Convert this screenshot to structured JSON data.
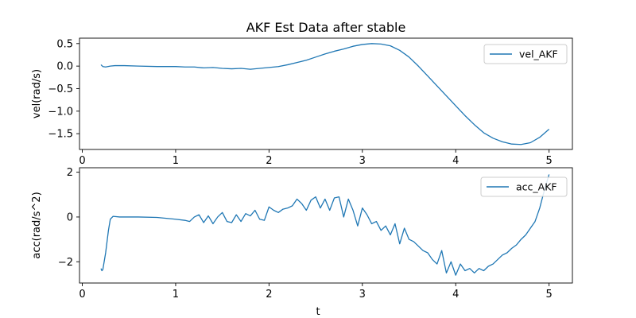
{
  "figure": {
    "title": "AKF Est Data after stable"
  },
  "chart_data": [
    {
      "type": "line",
      "title": "AKF Est Data after stable",
      "xlabel": "",
      "ylabel": "vel(rad/s)",
      "xlim": [
        -0.03,
        5.25
      ],
      "ylim": [
        -1.85,
        0.62
      ],
      "xticks": [
        0,
        1,
        2,
        3,
        4,
        5
      ],
      "xtick_labels": [
        "0",
        "1",
        "2",
        "3",
        "4",
        "5"
      ],
      "yticks": [
        0.5,
        0.0,
        -0.5,
        -1.0,
        -1.5
      ],
      "ytick_labels": [
        "0.5",
        "0.0",
        "−0.5",
        "−1.0",
        "−1.5"
      ],
      "grid": false,
      "legend": "top-right",
      "series": [
        {
          "name": "vel_AKF",
          "color": "#1f77b4",
          "points": [
            [
              0.2,
              0.03
            ],
            [
              0.22,
              -0.01
            ],
            [
              0.25,
              -0.02
            ],
            [
              0.3,
              0.0
            ],
            [
              0.35,
              0.01
            ],
            [
              0.45,
              0.01
            ],
            [
              0.6,
              0.0
            ],
            [
              0.8,
              -0.01
            ],
            [
              1.0,
              -0.01
            ],
            [
              1.1,
              -0.02
            ],
            [
              1.2,
              -0.02
            ],
            [
              1.3,
              -0.04
            ],
            [
              1.4,
              -0.03
            ],
            [
              1.5,
              -0.05
            ],
            [
              1.6,
              -0.06
            ],
            [
              1.7,
              -0.05
            ],
            [
              1.8,
              -0.07
            ],
            [
              1.9,
              -0.05
            ],
            [
              2.0,
              -0.03
            ],
            [
              2.1,
              -0.01
            ],
            [
              2.2,
              0.03
            ],
            [
              2.3,
              0.08
            ],
            [
              2.4,
              0.13
            ],
            [
              2.5,
              0.2
            ],
            [
              2.6,
              0.27
            ],
            [
              2.7,
              0.33
            ],
            [
              2.8,
              0.38
            ],
            [
              2.9,
              0.44
            ],
            [
              3.0,
              0.48
            ],
            [
              3.1,
              0.5
            ],
            [
              3.2,
              0.49
            ],
            [
              3.3,
              0.45
            ],
            [
              3.4,
              0.35
            ],
            [
              3.5,
              0.2
            ],
            [
              3.6,
              0.0
            ],
            [
              3.7,
              -0.22
            ],
            [
              3.8,
              -0.44
            ],
            [
              3.9,
              -0.66
            ],
            [
              4.0,
              -0.88
            ],
            [
              4.1,
              -1.1
            ],
            [
              4.2,
              -1.3
            ],
            [
              4.3,
              -1.48
            ],
            [
              4.4,
              -1.6
            ],
            [
              4.5,
              -1.68
            ],
            [
              4.6,
              -1.73
            ],
            [
              4.7,
              -1.74
            ],
            [
              4.8,
              -1.7
            ],
            [
              4.9,
              -1.58
            ],
            [
              5.0,
              -1.4
            ]
          ]
        }
      ]
    },
    {
      "type": "line",
      "title": "",
      "xlabel": "t",
      "ylabel": "acc(rad/s^2)",
      "xlim": [
        -0.03,
        5.25
      ],
      "ylim": [
        -2.95,
        2.2
      ],
      "xticks": [
        0,
        1,
        2,
        3,
        4,
        5
      ],
      "xtick_labels": [
        "0",
        "1",
        "2",
        "3",
        "4",
        "5"
      ],
      "yticks": [
        2,
        0,
        -2
      ],
      "ytick_labels": [
        "2",
        "0",
        "−2"
      ],
      "grid": false,
      "legend": "top-right",
      "series": [
        {
          "name": "acc_AKF",
          "color": "#1f77b4",
          "points": [
            [
              0.2,
              -2.3
            ],
            [
              0.21,
              -2.4
            ],
            [
              0.22,
              -2.35
            ],
            [
              0.25,
              -1.6
            ],
            [
              0.28,
              -0.6
            ],
            [
              0.3,
              -0.1
            ],
            [
              0.33,
              0.03
            ],
            [
              0.4,
              0.0
            ],
            [
              0.6,
              0.0
            ],
            [
              0.8,
              -0.02
            ],
            [
              1.0,
              -0.1
            ],
            [
              1.1,
              -0.15
            ],
            [
              1.15,
              -0.2
            ],
            [
              1.2,
              0.0
            ],
            [
              1.25,
              0.1
            ],
            [
              1.3,
              -0.25
            ],
            [
              1.35,
              0.05
            ],
            [
              1.4,
              -0.3
            ],
            [
              1.45,
              0.0
            ],
            [
              1.5,
              0.2
            ],
            [
              1.55,
              -0.2
            ],
            [
              1.6,
              -0.25
            ],
            [
              1.65,
              0.1
            ],
            [
              1.7,
              -0.2
            ],
            [
              1.75,
              0.15
            ],
            [
              1.8,
              0.05
            ],
            [
              1.85,
              0.3
            ],
            [
              1.9,
              -0.1
            ],
            [
              1.95,
              -0.15
            ],
            [
              2.0,
              0.45
            ],
            [
              2.05,
              0.3
            ],
            [
              2.1,
              0.2
            ],
            [
              2.15,
              0.35
            ],
            [
              2.2,
              0.4
            ],
            [
              2.25,
              0.5
            ],
            [
              2.3,
              0.8
            ],
            [
              2.35,
              0.6
            ],
            [
              2.4,
              0.3
            ],
            [
              2.45,
              0.75
            ],
            [
              2.5,
              0.9
            ],
            [
              2.55,
              0.4
            ],
            [
              2.6,
              0.8
            ],
            [
              2.65,
              0.3
            ],
            [
              2.7,
              0.85
            ],
            [
              2.75,
              0.9
            ],
            [
              2.8,
              0.0
            ],
            [
              2.85,
              0.8
            ],
            [
              2.9,
              0.3
            ],
            [
              2.95,
              -0.4
            ],
            [
              3.0,
              0.4
            ],
            [
              3.05,
              0.1
            ],
            [
              3.1,
              -0.3
            ],
            [
              3.15,
              -0.2
            ],
            [
              3.2,
              -0.6
            ],
            [
              3.25,
              -0.4
            ],
            [
              3.3,
              -0.8
            ],
            [
              3.35,
              -0.3
            ],
            [
              3.4,
              -1.2
            ],
            [
              3.45,
              -0.5
            ],
            [
              3.5,
              -1.0
            ],
            [
              3.55,
              -1.1
            ],
            [
              3.6,
              -1.3
            ],
            [
              3.65,
              -1.5
            ],
            [
              3.7,
              -1.6
            ],
            [
              3.75,
              -1.9
            ],
            [
              3.8,
              -2.1
            ],
            [
              3.85,
              -1.5
            ],
            [
              3.9,
              -2.5
            ],
            [
              3.95,
              -2.0
            ],
            [
              4.0,
              -2.6
            ],
            [
              4.05,
              -2.1
            ],
            [
              4.1,
              -2.4
            ],
            [
              4.15,
              -2.3
            ],
            [
              4.2,
              -2.5
            ],
            [
              4.25,
              -2.3
            ],
            [
              4.3,
              -2.4
            ],
            [
              4.35,
              -2.2
            ],
            [
              4.4,
              -2.1
            ],
            [
              4.45,
              -1.9
            ],
            [
              4.5,
              -1.7
            ],
            [
              4.55,
              -1.6
            ],
            [
              4.6,
              -1.4
            ],
            [
              4.65,
              -1.25
            ],
            [
              4.7,
              -1.0
            ],
            [
              4.75,
              -0.8
            ],
            [
              4.8,
              -0.5
            ],
            [
              4.85,
              -0.2
            ],
            [
              4.9,
              0.4
            ],
            [
              4.95,
              1.2
            ],
            [
              5.0,
              1.9
            ]
          ]
        }
      ]
    }
  ]
}
